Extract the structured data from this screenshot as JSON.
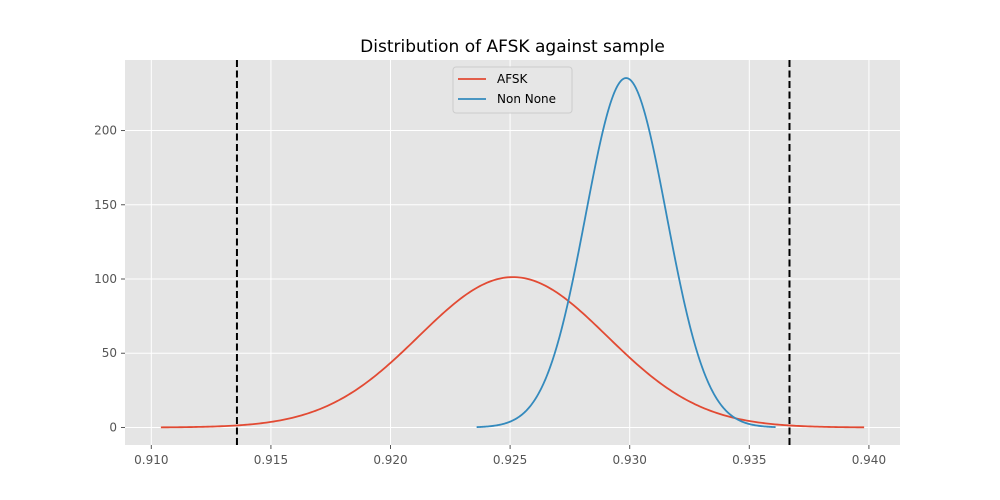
{
  "chart_data": {
    "type": "line",
    "title": "Distribution of AFSK against sample",
    "xlabel": "",
    "ylabel": "",
    "xlim": [
      0.9089,
      0.9413
    ],
    "ylim": [
      -11.8,
      247.5
    ],
    "x_ticks": [
      0.91,
      0.915,
      0.92,
      0.925,
      0.93,
      0.935,
      0.94
    ],
    "x_tick_labels": [
      "0.910",
      "0.915",
      "0.920",
      "0.925",
      "0.930",
      "0.935",
      "0.940"
    ],
    "y_ticks": [
      0,
      50,
      100,
      150,
      200
    ],
    "y_tick_labels": [
      "0",
      "50",
      "100",
      "150",
      "200"
    ],
    "grid": true,
    "legend_position": "top-center",
    "series": [
      {
        "name": "AFSK",
        "color": "#E24A33",
        "distribution": "normal",
        "mean": 0.92512,
        "std": 0.003939,
        "x_range": [
          0.9104,
          0.9398
        ]
      },
      {
        "name": "Non None",
        "color": "#348ABD",
        "distribution": "normal",
        "mean": 0.92985,
        "std": 0.001695,
        "x_range": [
          0.9236,
          0.9361
        ]
      }
    ],
    "vlines": [
      {
        "x": 0.91358,
        "color": "#000000",
        "style": "dashed"
      },
      {
        "x": 0.93668,
        "color": "#000000",
        "style": "dashed"
      }
    ]
  }
}
